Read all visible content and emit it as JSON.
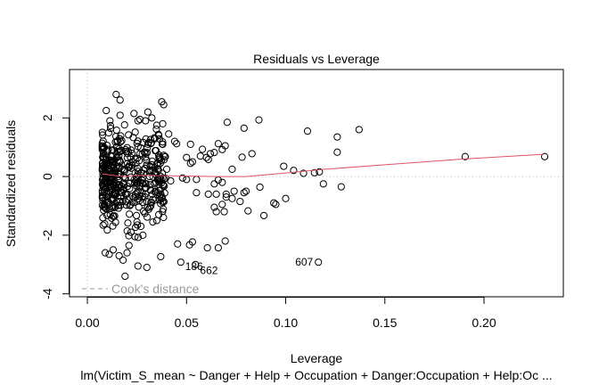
{
  "chart_data": {
    "type": "scatter",
    "title": "Residuals vs Leverage",
    "xlabel": "Leverage",
    "ylabel": "Standardized residuals",
    "subtitle": "lm(Victim_S_mean ~ Danger + Help + Occupation + Danger:Occupation + Help:Oc ...",
    "xlim": [
      -0.009,
      0.24
    ],
    "ylim": [
      -4.1,
      3.65
    ],
    "x_ticks": [
      0.0,
      0.05,
      0.1,
      0.15,
      0.2
    ],
    "x_tick_labels": [
      "0.00",
      "0.05",
      "0.10",
      "0.15",
      "0.20"
    ],
    "y_ticks": [
      -4,
      -2,
      0,
      2
    ],
    "y_tick_labels": [
      "-4",
      "-2",
      "0",
      "2"
    ],
    "grid": false,
    "reference_lines": {
      "horizontal_dotted_at": 0,
      "vertical_dotted_at": 0
    },
    "legend": {
      "position": "bottom-left",
      "entries": [
        {
          "label": "Cook's distance",
          "style": "dashed",
          "color": "#999999"
        }
      ]
    },
    "smoother_color": "#DF536B",
    "point_color": "#000000",
    "smoother": [
      [
        0.0075,
        0.09
      ],
      [
        0.012,
        0.05
      ],
      [
        0.018,
        0.0
      ],
      [
        0.025,
        0.04
      ],
      [
        0.035,
        0.03
      ],
      [
        0.05,
        0.02
      ],
      [
        0.065,
        0.0
      ],
      [
        0.08,
        0.0
      ],
      [
        0.1,
        0.12
      ],
      [
        0.12,
        0.25
      ],
      [
        0.15,
        0.4
      ],
      [
        0.19,
        0.6
      ],
      [
        0.23,
        0.76
      ]
    ],
    "labeled_points": [
      {
        "label": "186",
        "x": 0.0475,
        "y": -2.92
      },
      {
        "label": "662",
        "x": 0.055,
        "y": -3.05
      },
      {
        "label": "607",
        "x": 0.1165,
        "y": -2.92
      }
    ],
    "points": [
      [
        0.1905,
        0.68
      ],
      [
        0.2306,
        0.68
      ],
      [
        0.137,
        1.6
      ],
      [
        0.126,
        1.35
      ],
      [
        0.126,
        0.83
      ],
      [
        0.111,
        1.55
      ],
      [
        0.119,
        -0.25
      ],
      [
        0.128,
        -0.35
      ],
      [
        0.1145,
        0.13
      ],
      [
        0.117,
        0.16
      ],
      [
        0.109,
        0.11
      ],
      [
        0.104,
        0.21
      ],
      [
        0.099,
        0.35
      ],
      [
        0.1,
        -0.75
      ],
      [
        0.094,
        -0.9
      ],
      [
        0.089,
        -1.33
      ],
      [
        0.095,
        -0.95
      ],
      [
        0.0865,
        1.93
      ],
      [
        0.079,
        1.65
      ],
      [
        0.0705,
        1.85
      ],
      [
        0.078,
        0.66
      ],
      [
        0.083,
        0.78
      ],
      [
        0.073,
        0.25
      ],
      [
        0.079,
        -0.55
      ],
      [
        0.077,
        -0.85
      ],
      [
        0.08,
        -0.5
      ],
      [
        0.081,
        -1.17
      ],
      [
        0.087,
        -0.36
      ],
      [
        0.0695,
        1.05
      ],
      [
        0.068,
        0.92
      ],
      [
        0.066,
        1.12
      ],
      [
        0.064,
        0.82
      ],
      [
        0.062,
        0.78
      ],
      [
        0.06,
        0.65
      ],
      [
        0.061,
        0.58
      ],
      [
        0.058,
        0.93
      ],
      [
        0.052,
        1.1
      ],
      [
        0.055,
        -0.1
      ],
      [
        0.068,
        -0.2
      ],
      [
        0.064,
        -0.25
      ],
      [
        0.066,
        -0.12
      ],
      [
        0.057,
        0.7
      ],
      [
        0.052,
        0.45
      ],
      [
        0.05,
        0.65
      ],
      [
        0.053,
        0.5
      ],
      [
        0.045,
        1.12
      ],
      [
        0.048,
        -0.05
      ],
      [
        0.05,
        -0.1
      ],
      [
        0.055,
        -0.55
      ],
      [
        0.061,
        -0.6
      ],
      [
        0.065,
        -0.6
      ],
      [
        0.07,
        -0.6
      ],
      [
        0.074,
        -0.5
      ],
      [
        0.073,
        -0.75
      ],
      [
        0.07,
        -0.7
      ],
      [
        0.068,
        -0.95
      ],
      [
        0.069,
        -1.2
      ],
      [
        0.064,
        -1.05
      ],
      [
        0.065,
        -1.2
      ],
      [
        0.0455,
        -2.3
      ],
      [
        0.0515,
        -2.33
      ],
      [
        0.053,
        -2.23
      ],
      [
        0.0605,
        -2.43
      ],
      [
        0.066,
        -2.43
      ],
      [
        0.0695,
        -2.2
      ],
      [
        0.037,
        -2.73
      ],
      [
        0.0471,
        -2.92
      ],
      [
        0.0545,
        -3.0
      ],
      [
        0.1165,
        -2.92
      ],
      [
        0.0295,
        1.28
      ],
      [
        0.0305,
        1.1
      ],
      [
        0.0365,
        0.67
      ],
      [
        0.0385,
        0.72
      ],
      [
        0.04,
        0.25
      ],
      [
        0.042,
        -0.15
      ],
      [
        0.038,
        -0.05
      ],
      [
        0.039,
        -0.56
      ],
      [
        0.037,
        -0.6
      ],
      [
        0.034,
        -0.8
      ],
      [
        0.036,
        -1.3
      ],
      [
        0.035,
        -1.5
      ],
      [
        0.033,
        -1.55
      ],
      [
        0.032,
        -1.0
      ],
      [
        0.03,
        -0.85
      ],
      [
        0.029,
        -1.25
      ],
      [
        0.028,
        -2.0
      ],
      [
        0.03,
        -3.1
      ],
      [
        0.0145,
        2.8
      ],
      [
        0.0165,
        2.61
      ],
      [
        0.0095,
        2.25
      ],
      [
        0.0165,
        2.09
      ],
      [
        0.0375,
        2.55
      ],
      [
        0.0385,
        2.45
      ],
      [
        0.0235,
        2.15
      ],
      [
        0.0305,
        2.2
      ],
      [
        0.0265,
        1.95
      ],
      [
        0.0325,
        2.0
      ],
      [
        0.035,
        1.75
      ],
      [
        0.038,
        1.8
      ],
      [
        0.041,
        1.45
      ],
      [
        0.044,
        1.2
      ],
      [
        0.036,
        1.4
      ],
      [
        0.038,
        1.1
      ],
      [
        0.019,
        -3.4
      ],
      [
        0.0255,
        -3.05
      ],
      [
        0.016,
        -2.7
      ],
      [
        0.011,
        -2.65
      ],
      [
        0.013,
        -2.5
      ],
      [
        0.009,
        -2.6
      ],
      [
        0.018,
        -2.85
      ],
      [
        0.021,
        -2.35
      ],
      [
        0.024,
        -2.05
      ],
      [
        0.022,
        -1.9
      ],
      [
        0.027,
        -1.7
      ],
      [
        0.025,
        -1.55
      ],
      [
        0.02,
        -2.6
      ]
    ],
    "cluster_note": "dense cluster of several hundred points at leverage 0.007-0.04, residuals -2.8 to 2"
  }
}
